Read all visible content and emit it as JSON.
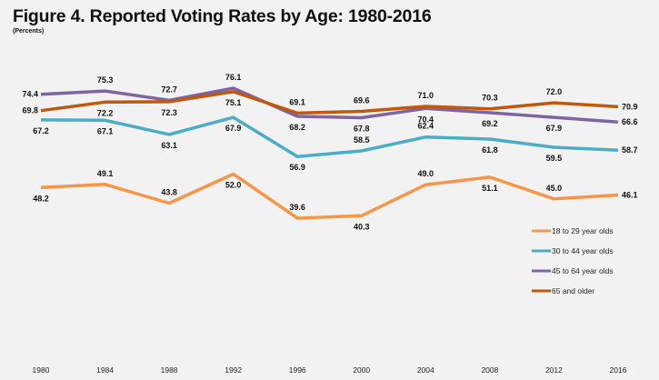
{
  "chart_data": {
    "type": "line",
    "title": "Figure 4. Reported Voting Rates by Age: 1980-2016",
    "subtitle": "(Percents)",
    "xlabel": "",
    "ylabel": "",
    "x": [
      "1980",
      "1984",
      "1988",
      "1992",
      "1996",
      "2000",
      "2004",
      "2008",
      "2012",
      "2016"
    ],
    "ylim": [
      35,
      80
    ],
    "grid": false,
    "legend_position": "right",
    "series": [
      {
        "name": "18 to 29 year olds",
        "color": "#f79646",
        "values": [
          48.2,
          49.1,
          43.8,
          52.0,
          39.6,
          40.3,
          49.0,
          51.1,
          45.0,
          46.1
        ],
        "labels": [
          "48.2",
          "49.1",
          "43.8",
          "52.0",
          "39.6",
          "40.3",
          "49.0",
          "51.1",
          "45.0",
          "46.1"
        ],
        "label_pos": [
          "below",
          "above",
          "above",
          "below",
          "above",
          "below",
          "above",
          "below",
          "above",
          "right"
        ]
      },
      {
        "name": "30 to 44 year olds",
        "color": "#4bacc6",
        "values": [
          67.2,
          67.1,
          63.1,
          67.9,
          56.9,
          58.5,
          62.4,
          61.8,
          59.5,
          58.7
        ],
        "labels": [
          "67.2",
          "67.1",
          "63.1",
          "67.9",
          "56.9",
          "58.5",
          "62.4",
          "61.8",
          "59.5",
          "58.7"
        ],
        "label_pos": [
          "below",
          "below",
          "below",
          "below",
          "below",
          "above",
          "above",
          "below",
          "below",
          "right"
        ]
      },
      {
        "name": "45 to 64 year olds",
        "color": "#8064a2",
        "values": [
          74.4,
          75.3,
          72.7,
          76.1,
          68.2,
          67.8,
          70.4,
          69.2,
          67.9,
          66.6
        ],
        "labels": [
          "74.4",
          "75.3",
          "72.7",
          "76.1",
          "68.2",
          "67.8",
          "70.4",
          "69.2",
          "67.9",
          "66.6"
        ],
        "label_pos": [
          "left",
          "above",
          "above",
          "above",
          "below",
          "below",
          "below",
          "below",
          "below",
          "right"
        ]
      },
      {
        "name": "65 and older",
        "color": "#c0580e",
        "values": [
          69.8,
          72.2,
          72.3,
          75.1,
          69.1,
          69.6,
          71.0,
          70.3,
          72.0,
          70.9
        ],
        "labels": [
          "69.8",
          "72.2",
          "72.3",
          "75.1",
          "69.1",
          "69.6",
          "71.0",
          "70.3",
          "72.0",
          "70.9"
        ],
        "label_pos": [
          "left",
          "below",
          "below",
          "below",
          "above",
          "above",
          "above",
          "above",
          "above",
          "right"
        ]
      }
    ]
  }
}
